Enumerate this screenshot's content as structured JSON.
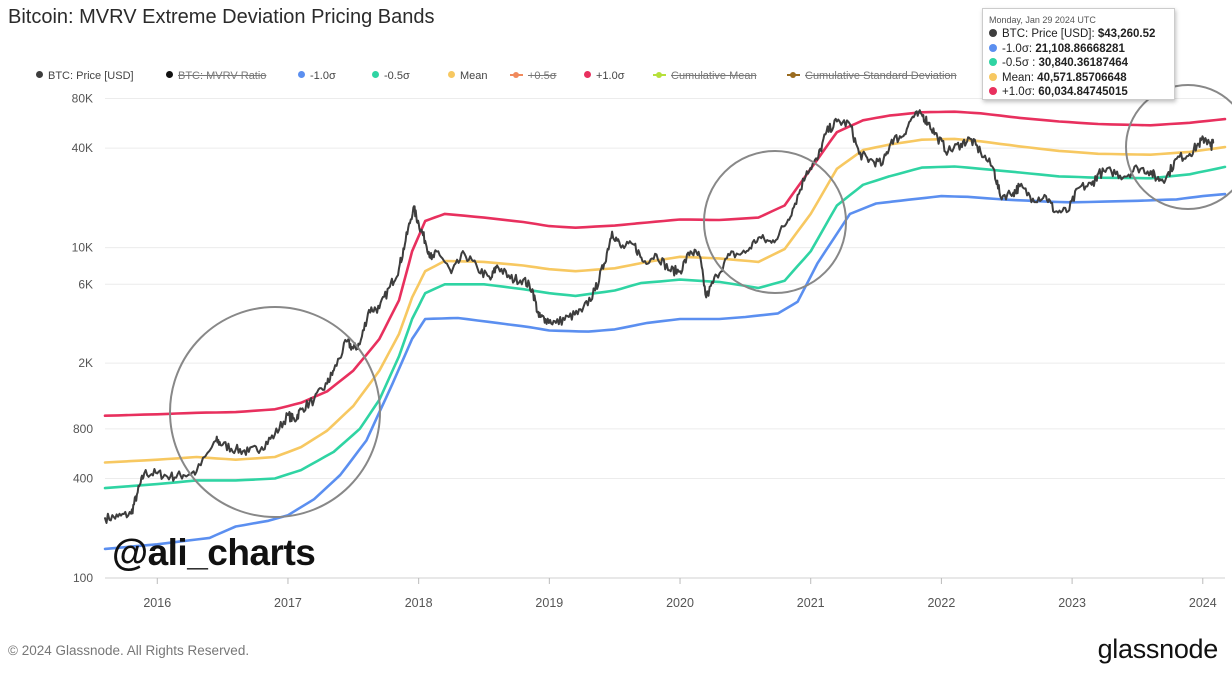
{
  "title": "Bitcoin: MVRV Extreme Deviation Pricing Bands",
  "legend": [
    {
      "label": "BTC: Price [USD]",
      "color": "#3d3d3d",
      "active": true,
      "style": "dot"
    },
    {
      "label": "BTC: MVRV Ratio",
      "color": "#111111",
      "active": false,
      "style": "dot"
    },
    {
      "label": "-1.0σ",
      "color": "#5b8ff0",
      "active": true,
      "style": "dot"
    },
    {
      "label": "-0.5σ",
      "color": "#2fd4a3",
      "active": true,
      "style": "dot"
    },
    {
      "label": "Mean",
      "color": "#f7c861",
      "active": true,
      "style": "dot"
    },
    {
      "label": "+0.5σ",
      "color": "#f08a5d",
      "active": false,
      "style": "dash"
    },
    {
      "label": "+1.0σ",
      "color": "#e8305e",
      "active": true,
      "style": "dot"
    },
    {
      "label": "Cumulative Mean",
      "color": "#b6e03a",
      "active": false,
      "style": "dash"
    },
    {
      "label": "Cumulative Standard Deviation",
      "color": "#9a6b1f",
      "active": false,
      "style": "dash"
    }
  ],
  "tooltip": {
    "date": "Monday, Jan 29 2024 UTC",
    "rows": [
      {
        "label": "BTC: Price [USD]:",
        "value": "$43,260.52",
        "color": "#3d3d3d"
      },
      {
        "label": "-1.0σ:",
        "value": "21,108.86668281",
        "color": "#5b8ff0"
      },
      {
        "label": "-0.5σ :",
        "value": "30,840.36187464",
        "color": "#2fd4a3"
      },
      {
        "label": "Mean:",
        "value": "40,571.85706648",
        "color": "#f7c861"
      },
      {
        "label": "+1.0σ:",
        "value": "60,034.84745015",
        "color": "#e8305e"
      }
    ]
  },
  "watermark_handle": "@ali_charts",
  "footer": {
    "copyright": "© 2024 Glassnode. All Rights Reserved.",
    "brand": "glassnode"
  },
  "chart_data": {
    "type": "line",
    "title": "Bitcoin: MVRV Extreme Deviation Pricing Bands",
    "y_scale": "log",
    "ylim": [
      100,
      90000
    ],
    "xlim": [
      2015.6,
      2024.17
    ],
    "y_ticks": [
      {
        "value": 100,
        "label": "100"
      },
      {
        "value": 400,
        "label": "400"
      },
      {
        "value": 800,
        "label": "800"
      },
      {
        "value": 2000,
        "label": "2K"
      },
      {
        "value": 6000,
        "label": "6K"
      },
      {
        "value": 10000,
        "label": "10K"
      },
      {
        "value": 40000,
        "label": "40K"
      },
      {
        "value": 80000,
        "label": "80K"
      }
    ],
    "x_ticks": [
      {
        "value": 2016,
        "label": "2016"
      },
      {
        "value": 2017,
        "label": "2017"
      },
      {
        "value": 2018,
        "label": "2018"
      },
      {
        "value": 2019,
        "label": "2019"
      },
      {
        "value": 2020,
        "label": "2020"
      },
      {
        "value": 2021,
        "label": "2021"
      },
      {
        "value": 2022,
        "label": "2022"
      },
      {
        "value": 2023,
        "label": "2023"
      },
      {
        "value": 2024,
        "label": "2024"
      }
    ],
    "series": [
      {
        "name": "-1.0σ",
        "color": "#5b8ff0",
        "points": [
          [
            2015.6,
            150
          ],
          [
            2016.0,
            160
          ],
          [
            2016.4,
            175
          ],
          [
            2016.6,
            205
          ],
          [
            2016.85,
            222
          ],
          [
            2017.0,
            240
          ],
          [
            2017.2,
            300
          ],
          [
            2017.4,
            420
          ],
          [
            2017.6,
            680
          ],
          [
            2017.8,
            1500
          ],
          [
            2017.95,
            2800
          ],
          [
            2018.05,
            3700
          ],
          [
            2018.3,
            3750
          ],
          [
            2018.6,
            3500
          ],
          [
            2018.85,
            3300
          ],
          [
            2019.0,
            3150
          ],
          [
            2019.3,
            3100
          ],
          [
            2019.5,
            3200
          ],
          [
            2019.75,
            3500
          ],
          [
            2020.0,
            3700
          ],
          [
            2020.3,
            3700
          ],
          [
            2020.5,
            3800
          ],
          [
            2020.75,
            4000
          ],
          [
            2020.9,
            4700
          ],
          [
            2021.05,
            8000
          ],
          [
            2021.3,
            16000
          ],
          [
            2021.5,
            18500
          ],
          [
            2021.75,
            19500
          ],
          [
            2022.0,
            20500
          ],
          [
            2022.2,
            20300
          ],
          [
            2022.5,
            19500
          ],
          [
            2022.8,
            19000
          ],
          [
            2023.0,
            18800
          ],
          [
            2023.5,
            19200
          ],
          [
            2023.8,
            19600
          ],
          [
            2024.0,
            20500
          ],
          [
            2024.17,
            21100
          ]
        ]
      },
      {
        "name": "-0.5σ",
        "color": "#2fd4a3",
        "points": [
          [
            2015.6,
            350
          ],
          [
            2016.0,
            370
          ],
          [
            2016.3,
            390
          ],
          [
            2016.6,
            390
          ],
          [
            2016.9,
            400
          ],
          [
            2017.1,
            450
          ],
          [
            2017.35,
            580
          ],
          [
            2017.55,
            800
          ],
          [
            2017.7,
            1200
          ],
          [
            2017.85,
            2200
          ],
          [
            2017.95,
            3700
          ],
          [
            2018.05,
            5300
          ],
          [
            2018.2,
            6000
          ],
          [
            2018.5,
            6000
          ],
          [
            2018.8,
            5600
          ],
          [
            2019.0,
            5300
          ],
          [
            2019.2,
            5100
          ],
          [
            2019.5,
            5500
          ],
          [
            2019.7,
            6100
          ],
          [
            2020.0,
            6400
          ],
          [
            2020.3,
            6200
          ],
          [
            2020.6,
            5700
          ],
          [
            2020.8,
            6300
          ],
          [
            2021.0,
            9500
          ],
          [
            2021.2,
            18000
          ],
          [
            2021.4,
            24000
          ],
          [
            2021.6,
            27000
          ],
          [
            2021.85,
            30500
          ],
          [
            2022.1,
            31000
          ],
          [
            2022.3,
            30000
          ],
          [
            2022.6,
            28500
          ],
          [
            2022.9,
            27000
          ],
          [
            2023.2,
            26500
          ],
          [
            2023.6,
            26300
          ],
          [
            2023.9,
            27800
          ],
          [
            2024.17,
            30800
          ]
        ]
      },
      {
        "name": "Mean",
        "color": "#f7c861",
        "points": [
          [
            2015.6,
            500
          ],
          [
            2016.0,
            520
          ],
          [
            2016.3,
            540
          ],
          [
            2016.6,
            520
          ],
          [
            2016.9,
            540
          ],
          [
            2017.1,
            620
          ],
          [
            2017.3,
            780
          ],
          [
            2017.5,
            1100
          ],
          [
            2017.7,
            1800
          ],
          [
            2017.85,
            3000
          ],
          [
            2017.95,
            5000
          ],
          [
            2018.05,
            7200
          ],
          [
            2018.2,
            8300
          ],
          [
            2018.5,
            8200
          ],
          [
            2018.8,
            7800
          ],
          [
            2019.0,
            7400
          ],
          [
            2019.2,
            7200
          ],
          [
            2019.5,
            7500
          ],
          [
            2019.75,
            8200
          ],
          [
            2020.0,
            8800
          ],
          [
            2020.3,
            8600
          ],
          [
            2020.6,
            8200
          ],
          [
            2020.8,
            9800
          ],
          [
            2021.0,
            16000
          ],
          [
            2021.2,
            30000
          ],
          [
            2021.4,
            39000
          ],
          [
            2021.6,
            42000
          ],
          [
            2021.85,
            45000
          ],
          [
            2022.1,
            45500
          ],
          [
            2022.3,
            44000
          ],
          [
            2022.6,
            41000
          ],
          [
            2022.9,
            38500
          ],
          [
            2023.2,
            37000
          ],
          [
            2023.6,
            36500
          ],
          [
            2023.9,
            38000
          ],
          [
            2024.17,
            40600
          ]
        ]
      },
      {
        "name": "+1.0σ",
        "color": "#e8305e",
        "points": [
          [
            2015.6,
            960
          ],
          [
            2016.0,
            980
          ],
          [
            2016.3,
            1000
          ],
          [
            2016.6,
            1010
          ],
          [
            2016.9,
            1050
          ],
          [
            2017.1,
            1150
          ],
          [
            2017.3,
            1350
          ],
          [
            2017.5,
            1800
          ],
          [
            2017.7,
            2800
          ],
          [
            2017.85,
            4800
          ],
          [
            2017.95,
            9500
          ],
          [
            2018.05,
            14500
          ],
          [
            2018.2,
            16000
          ],
          [
            2018.5,
            15200
          ],
          [
            2018.8,
            14300
          ],
          [
            2019.0,
            13500
          ],
          [
            2019.2,
            13200
          ],
          [
            2019.5,
            13600
          ],
          [
            2019.75,
            14200
          ],
          [
            2020.0,
            14800
          ],
          [
            2020.3,
            14700
          ],
          [
            2020.6,
            15200
          ],
          [
            2020.8,
            18000
          ],
          [
            2021.0,
            30000
          ],
          [
            2021.2,
            50000
          ],
          [
            2021.4,
            59000
          ],
          [
            2021.6,
            63000
          ],
          [
            2021.85,
            66000
          ],
          [
            2022.1,
            66500
          ],
          [
            2022.3,
            65000
          ],
          [
            2022.6,
            61000
          ],
          [
            2022.9,
            58000
          ],
          [
            2023.2,
            56000
          ],
          [
            2023.6,
            55000
          ],
          [
            2023.9,
            57000
          ],
          [
            2024.17,
            60000
          ]
        ]
      },
      {
        "name": "BTC: Price [USD]",
        "color": "#3d3d3d",
        "points": [
          [
            2015.6,
            230
          ],
          [
            2015.7,
            235
          ],
          [
            2015.8,
            245
          ],
          [
            2015.85,
            330
          ],
          [
            2015.9,
            430
          ],
          [
            2016.0,
            430
          ],
          [
            2016.1,
            410
          ],
          [
            2016.2,
            420
          ],
          [
            2016.3,
            440
          ],
          [
            2016.45,
            680
          ],
          [
            2016.5,
            640
          ],
          [
            2016.6,
            600
          ],
          [
            2016.7,
            580
          ],
          [
            2016.8,
            620
          ],
          [
            2016.9,
            740
          ],
          [
            2017.0,
            970
          ],
          [
            2017.05,
            900
          ],
          [
            2017.1,
            1050
          ],
          [
            2017.2,
            1200
          ],
          [
            2017.3,
            1500
          ],
          [
            2017.35,
            1800
          ],
          [
            2017.45,
            2700
          ],
          [
            2017.5,
            2450
          ],
          [
            2017.55,
            2600
          ],
          [
            2017.62,
            4200
          ],
          [
            2017.7,
            4300
          ],
          [
            2017.78,
            5800
          ],
          [
            2017.85,
            7500
          ],
          [
            2017.9,
            11000
          ],
          [
            2017.96,
            17500
          ],
          [
            2018.0,
            14000
          ],
          [
            2018.05,
            11000
          ],
          [
            2018.1,
            8500
          ],
          [
            2018.15,
            9500
          ],
          [
            2018.25,
            7000
          ],
          [
            2018.35,
            9200
          ],
          [
            2018.45,
            7500
          ],
          [
            2018.55,
            6400
          ],
          [
            2018.6,
            7800
          ],
          [
            2018.7,
            6500
          ],
          [
            2018.8,
            6400
          ],
          [
            2018.87,
            5600
          ],
          [
            2018.92,
            3800
          ],
          [
            2018.97,
            3700
          ],
          [
            2019.05,
            3500
          ],
          [
            2019.15,
            3800
          ],
          [
            2019.25,
            4100
          ],
          [
            2019.35,
            5500
          ],
          [
            2019.42,
            8000
          ],
          [
            2019.48,
            12500
          ],
          [
            2019.55,
            10000
          ],
          [
            2019.65,
            10400
          ],
          [
            2019.72,
            8200
          ],
          [
            2019.82,
            9100
          ],
          [
            2019.92,
            7300
          ],
          [
            2020.0,
            7200
          ],
          [
            2020.08,
            9500
          ],
          [
            2020.15,
            8900
          ],
          [
            2020.2,
            5000
          ],
          [
            2020.28,
            6800
          ],
          [
            2020.38,
            9000
          ],
          [
            2020.5,
            9300
          ],
          [
            2020.6,
            11500
          ],
          [
            2020.7,
            10700
          ],
          [
            2020.8,
            13500
          ],
          [
            2020.88,
            18500
          ],
          [
            2020.97,
            29000
          ],
          [
            2021.05,
            34000
          ],
          [
            2021.12,
            50000
          ],
          [
            2021.2,
            58000
          ],
          [
            2021.3,
            56000
          ],
          [
            2021.37,
            37000
          ],
          [
            2021.45,
            34000
          ],
          [
            2021.55,
            32000
          ],
          [
            2021.62,
            45000
          ],
          [
            2021.7,
            47000
          ],
          [
            2021.78,
            62000
          ],
          [
            2021.85,
            64000
          ],
          [
            2021.9,
            57000
          ],
          [
            2021.97,
            46500
          ],
          [
            2022.05,
            38000
          ],
          [
            2022.15,
            42500
          ],
          [
            2022.22,
            45500
          ],
          [
            2022.3,
            38000
          ],
          [
            2022.4,
            30000
          ],
          [
            2022.45,
            20500
          ],
          [
            2022.55,
            21500
          ],
          [
            2022.6,
            23500
          ],
          [
            2022.7,
            19800
          ],
          [
            2022.8,
            20500
          ],
          [
            2022.87,
            16500
          ],
          [
            2022.97,
            16600
          ],
          [
            2023.05,
            23000
          ],
          [
            2023.15,
            24000
          ],
          [
            2023.2,
            28000
          ],
          [
            2023.3,
            29000
          ],
          [
            2023.4,
            27000
          ],
          [
            2023.5,
            30500
          ],
          [
            2023.6,
            29000
          ],
          [
            2023.65,
            26000
          ],
          [
            2023.72,
            26500
          ],
          [
            2023.8,
            34500
          ],
          [
            2023.9,
            37000
          ],
          [
            2023.97,
            42500
          ],
          [
            2024.02,
            46000
          ],
          [
            2024.06,
            41000
          ],
          [
            2024.08,
            43260
          ]
        ]
      }
    ],
    "annotations": [
      {
        "type": "circle",
        "label": "2016-2017 highlight"
      },
      {
        "type": "circle",
        "label": "2020 highlight"
      },
      {
        "type": "circle",
        "label": "2024 highlight"
      }
    ]
  }
}
